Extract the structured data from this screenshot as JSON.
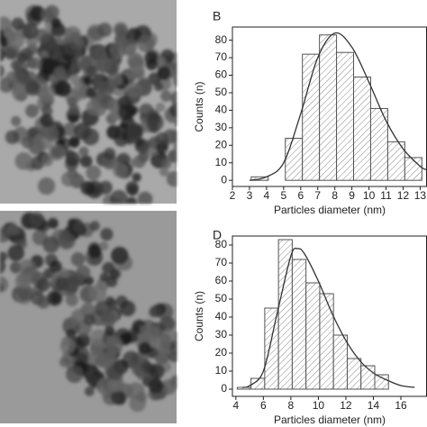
{
  "chart_data": [
    {
      "type": "histogram",
      "panel_label": "B",
      "xlabel": "Particles diameter (nm)",
      "ylabel": "Counts (n)",
      "bins": [
        3.1,
        4.1,
        5.1,
        6.1,
        7.1,
        8.1,
        9.1,
        10.1,
        11.1,
        12.1,
        13.1
      ],
      "counts": [
        2,
        0,
        24,
        72,
        83,
        73,
        59,
        41,
        22,
        13
      ],
      "color": "#555555",
      "fit": {
        "x": [
          3,
          4,
          5,
          6,
          7,
          8,
          9,
          10,
          11,
          12,
          13,
          13.4
        ],
        "values": [
          0,
          2,
          10,
          38,
          70,
          84,
          76,
          56,
          34,
          18,
          8,
          6
        ]
      },
      "xlim": [
        2,
        13.4
      ],
      "xticks": [
        2,
        3,
        4,
        5,
        6,
        7,
        8,
        9,
        10,
        11,
        12,
        13
      ],
      "ylim": [
        -3.5,
        87.5
      ],
      "yticks": [
        0,
        10,
        20,
        30,
        40,
        50,
        60,
        70,
        80
      ]
    },
    {
      "type": "histogram",
      "panel_label": "D",
      "xlabel": "Particles diameter (nm)",
      "ylabel": "Counts (n)",
      "bins": [
        4.1,
        5.1,
        6.1,
        7.1,
        8.1,
        9.1,
        10.1,
        11.1,
        12.1,
        13.1,
        14.1,
        15.1
      ],
      "counts": [
        1,
        6,
        45,
        83,
        72,
        59,
        53,
        30,
        17,
        13,
        8
      ],
      "color": "#555555",
      "fit": {
        "x": [
          4.5,
          5,
          6,
          7,
          8,
          8.5,
          9,
          10,
          11,
          12,
          13,
          14,
          15,
          16,
          17
        ],
        "values": [
          1,
          2,
          10,
          42,
          74,
          78,
          75,
          60,
          42,
          27,
          16,
          9,
          5,
          2,
          1
        ]
      },
      "xlim": [
        3.75,
        17.9
      ],
      "xticks": [
        4,
        6,
        8,
        10,
        12,
        14,
        16
      ],
      "ylim": [
        -4,
        85
      ],
      "yticks": [
        0,
        10,
        20,
        30,
        40,
        50,
        60,
        70,
        80
      ]
    }
  ]
}
